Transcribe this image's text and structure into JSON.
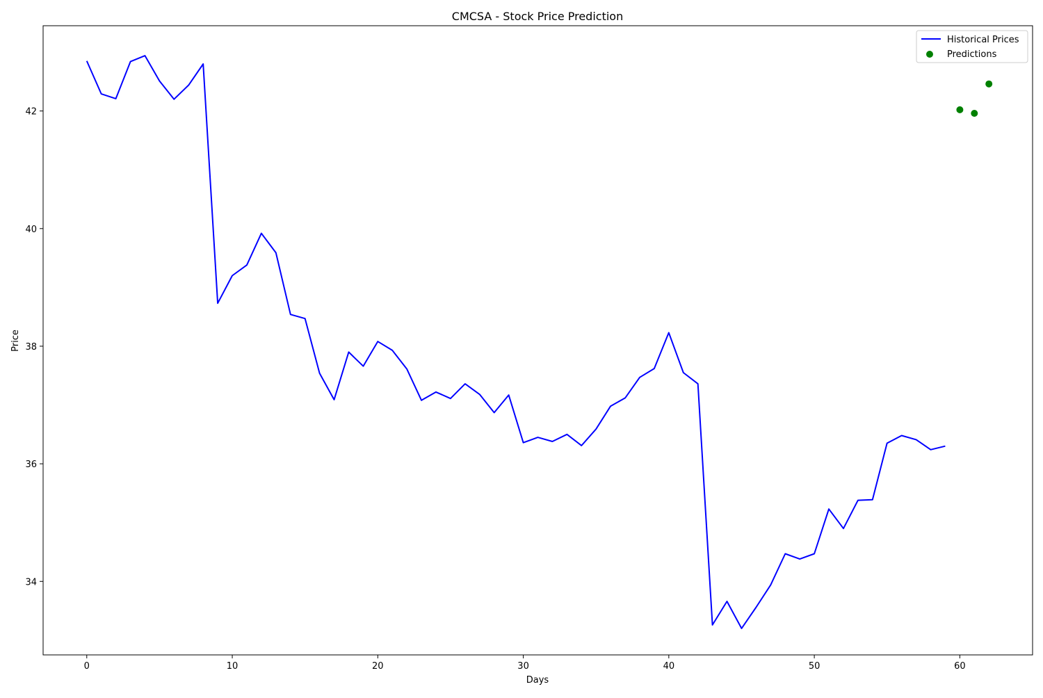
{
  "chart_data": {
    "type": "line",
    "title": "CMCSA - Stock Price Prediction",
    "xlabel": "Days",
    "ylabel": "Price",
    "xlim": [
      -3,
      65
    ],
    "ylim": [
      32.75,
      43.45
    ],
    "xticks": [
      0,
      10,
      20,
      30,
      40,
      50,
      60
    ],
    "yticks": [
      34,
      36,
      38,
      40,
      42
    ],
    "grid": false,
    "legend_position": "top-right",
    "series": [
      {
        "name": "Historical Prices",
        "kind": "line",
        "color": "#0000ff",
        "x": [
          0,
          1,
          2,
          3,
          4,
          5,
          6,
          7,
          8,
          9,
          10,
          11,
          12,
          13,
          14,
          15,
          16,
          17,
          18,
          19,
          20,
          21,
          22,
          23,
          24,
          25,
          26,
          27,
          28,
          29,
          30,
          31,
          32,
          33,
          34,
          35,
          36,
          37,
          38,
          39,
          40,
          41,
          42,
          43,
          44,
          45,
          46,
          47,
          48,
          49,
          50,
          51,
          52,
          53,
          54,
          55,
          56,
          57,
          58,
          59
        ],
        "y": [
          42.85,
          42.29,
          42.21,
          42.84,
          42.94,
          42.51,
          42.2,
          42.44,
          42.8,
          38.73,
          39.2,
          39.38,
          39.92,
          39.59,
          38.54,
          38.47,
          37.54,
          37.09,
          37.9,
          37.66,
          38.08,
          37.93,
          37.61,
          37.08,
          37.22,
          37.11,
          37.36,
          37.18,
          36.87,
          37.17,
          36.36,
          36.45,
          36.38,
          36.5,
          36.31,
          36.59,
          36.98,
          37.12,
          37.47,
          37.62,
          38.23,
          37.55,
          37.36,
          33.26,
          33.66,
          33.2,
          33.56,
          33.94,
          34.47,
          34.38,
          34.47,
          35.23,
          34.9,
          35.38,
          35.39,
          36.35,
          36.48,
          36.41,
          36.24,
          36.3
        ]
      },
      {
        "name": "Predictions",
        "kind": "scatter",
        "color": "#008000",
        "x": [
          60,
          61,
          62
        ],
        "y": [
          42.02,
          41.96,
          42.46
        ]
      }
    ]
  }
}
